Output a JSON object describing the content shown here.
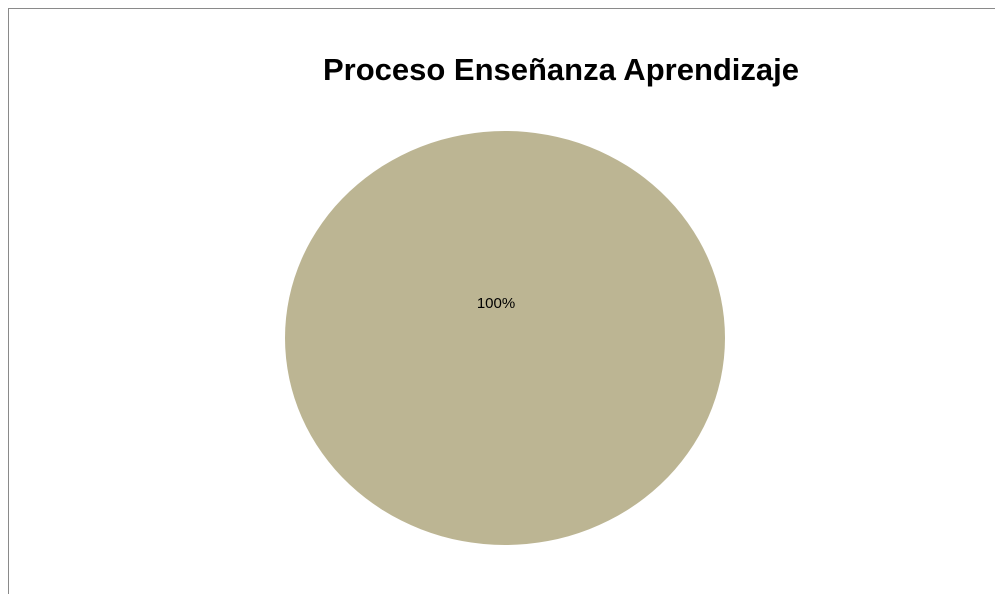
{
  "chart_data": {
    "type": "pie",
    "title": "Proceso Enseñanza Aprendizaje",
    "values": [
      100
    ],
    "value_labels": [
      "100%"
    ],
    "colors": [
      "#bcb593"
    ]
  }
}
